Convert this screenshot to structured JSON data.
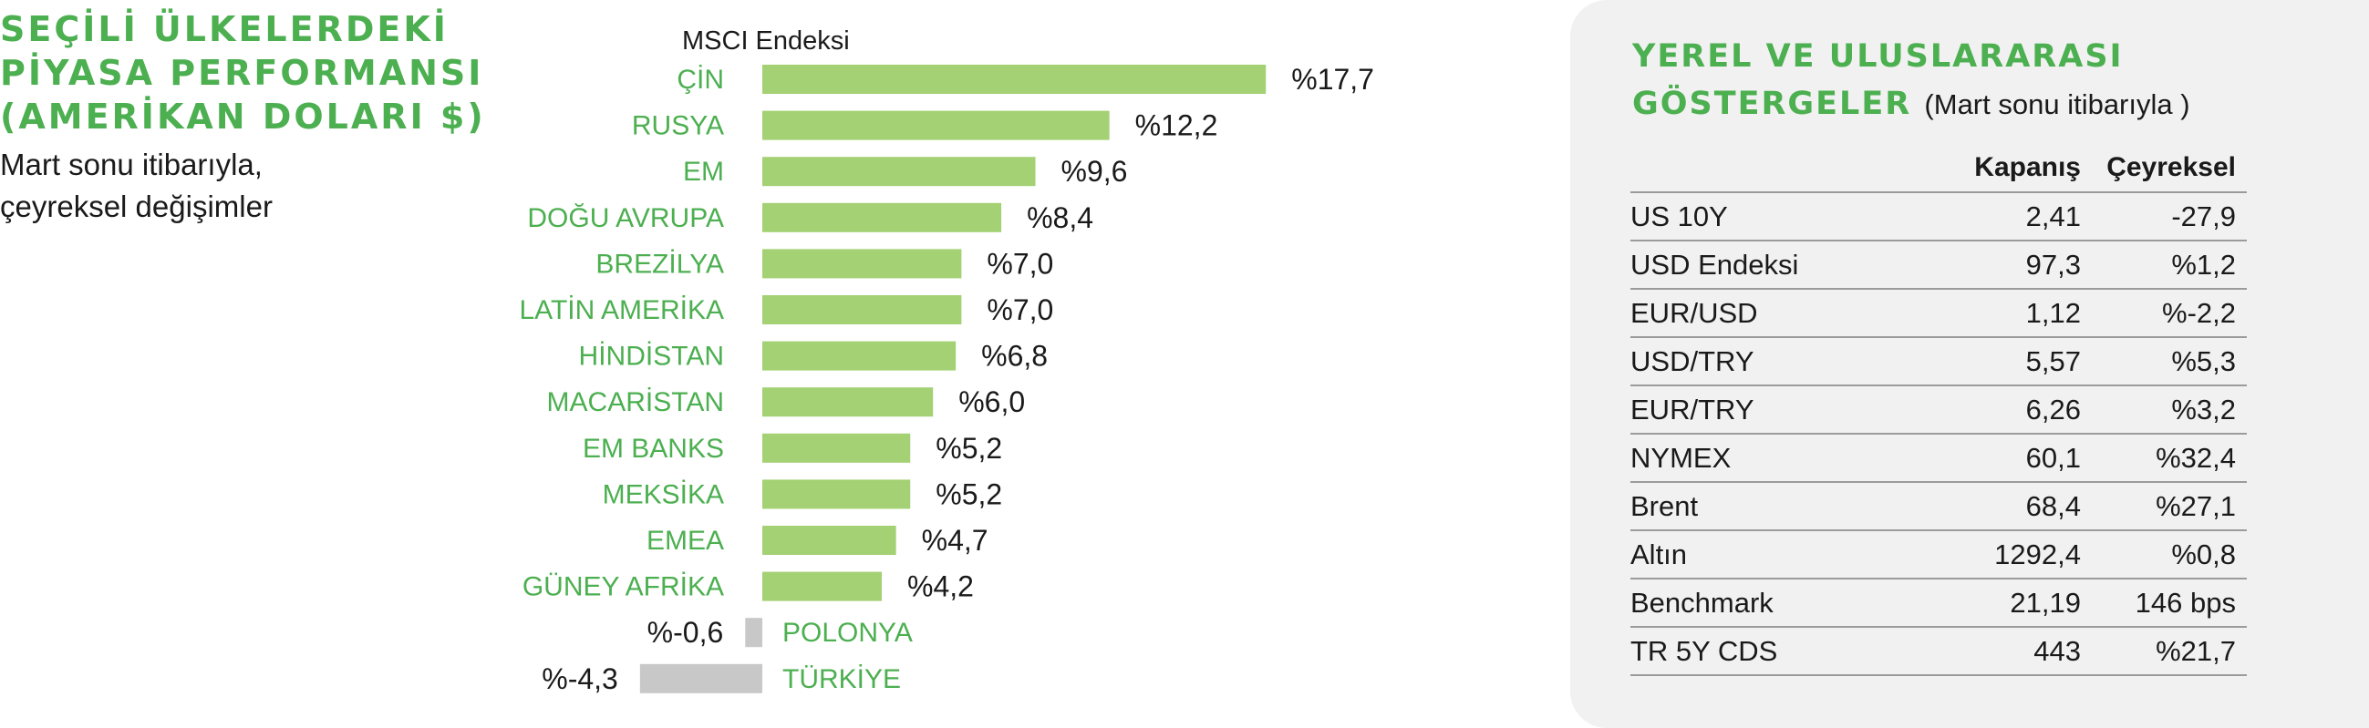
{
  "left_panel": {
    "title_lines": [
      "SEÇİLİ ÜLKELERDEKİ",
      "PİYASA PERFORMANSI",
      "(AMERİKAN DOLARI $)"
    ],
    "subtitle_lines": [
      "Mart sonu itibarıyla,",
      "çeyreksel değişimler"
    ]
  },
  "colors": {
    "accent_green": "#4caf50",
    "bar_positive": "#a3d173",
    "bar_negative": "#c8c8c8",
    "panel_bg": "#f1f1f1"
  },
  "chart_data": {
    "type": "bar",
    "orientation": "horizontal",
    "title": "MSCI Endeksi",
    "categories": [
      "ÇİN",
      "RUSYA",
      "EM",
      "DOĞU AVRUPA",
      "BREZİLYA",
      "LATİN AMERİKA",
      "HİNDİSTAN",
      "MACARİSTAN",
      "EM BANKS",
      "MEKSİKA",
      "EMEA",
      "GÜNEY AFRİKA",
      "POLONYA",
      "TÜRKİYE"
    ],
    "values": [
      17.7,
      12.2,
      9.6,
      8.4,
      7.0,
      7.0,
      6.8,
      6.0,
      5.2,
      5.2,
      4.7,
      4.2,
      -0.6,
      -4.3
    ],
    "value_labels": [
      "%17,7",
      "%12,2",
      "%9,6",
      "%8,4",
      "%7,0",
      "%7,0",
      "%6,8",
      "%6,0",
      "%5,2",
      "%5,2",
      "%4,7",
      "%4,2",
      "%-0,6",
      "%-4,3"
    ],
    "xlabel": "",
    "ylabel": "",
    "grid": false,
    "legend": "none"
  },
  "indicators": {
    "title_lines": [
      "YEREL VE ULUSLARARASI",
      "GÖSTERGELER"
    ],
    "subtitle": "(Mart sonu itibarıyla )",
    "columns": [
      "",
      "Kapanış",
      "Çeyreksel"
    ],
    "rows": [
      {
        "name": "US 10Y",
        "close": "2,41",
        "quarterly": "-27,9"
      },
      {
        "name": "USD Endeksi",
        "close": "97,3",
        "quarterly": "%1,2"
      },
      {
        "name": "EUR/USD",
        "close": "1,12",
        "quarterly": "%-2,2"
      },
      {
        "name": "USD/TRY",
        "close": "5,57",
        "quarterly": "%5,3"
      },
      {
        "name": "EUR/TRY",
        "close": "6,26",
        "quarterly": "%3,2"
      },
      {
        "name": "NYMEX",
        "close": "60,1",
        "quarterly": "%32,4"
      },
      {
        "name": "Brent",
        "close": "68,4",
        "quarterly": "%27,1"
      },
      {
        "name": "Altın",
        "close": "1292,4",
        "quarterly": "%0,8"
      },
      {
        "name": "Benchmark",
        "close": "21,19",
        "quarterly": "146 bps"
      },
      {
        "name": "TR 5Y CDS",
        "close": "443",
        "quarterly": "%21,7"
      }
    ]
  }
}
